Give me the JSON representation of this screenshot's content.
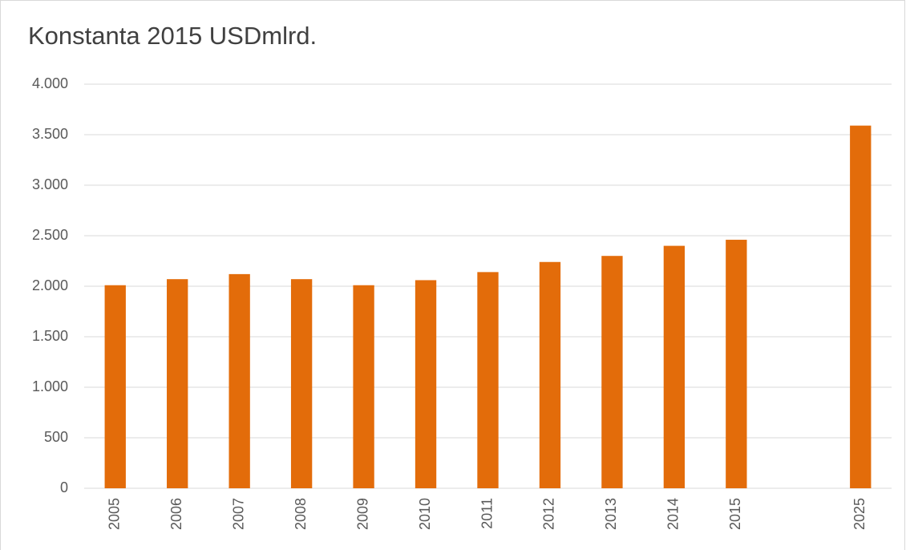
{
  "chart_data": {
    "type": "bar",
    "title": "Konstanta 2015 USDmlrd.",
    "categories": [
      "2005",
      "2006",
      "2007",
      "2008",
      "2009",
      "2010",
      "2011",
      "2012",
      "2013",
      "2014",
      "2015",
      null,
      "2025"
    ],
    "values": [
      2010,
      2070,
      2120,
      2070,
      2010,
      2060,
      2140,
      2240,
      2300,
      2400,
      2460,
      null,
      3590
    ],
    "color": "#e36c0a",
    "ylim": [
      0,
      4000
    ],
    "yticks": [
      0,
      500,
      {
        "value": 1000,
        "label": "1.000"
      },
      {
        "value": 1500,
        "label": "1.500"
      },
      {
        "value": 2000,
        "label": "2.000"
      },
      {
        "value": 2500,
        "label": "2.500"
      },
      {
        "value": 3000,
        "label": "3.000"
      },
      {
        "value": 3500,
        "label": "3.500"
      },
      {
        "value": 4000,
        "label": "4.000"
      }
    ],
    "grid": true
  }
}
